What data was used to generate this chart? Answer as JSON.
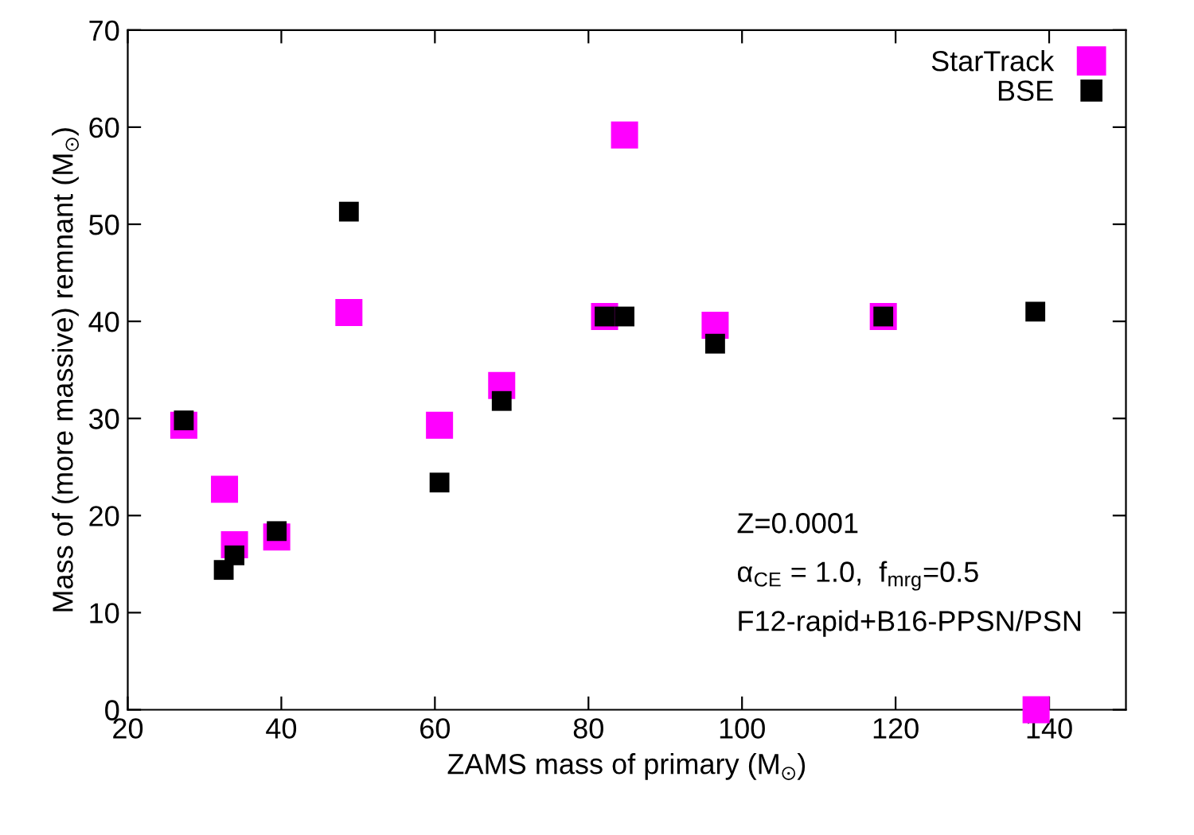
{
  "chart_data": {
    "type": "scatter",
    "xlabel": "ZAMS mass of primary (M$_{⊙}$)",
    "ylabel": "Mass of (more massive) remnant (M$_{⊙}$)",
    "annotations": [
      "Z=0.0001",
      "α$_{CE}$ = 1.0,  f$_{mrg}$=0.5",
      "F12-rapid+B16-PPSN/PSN"
    ],
    "series": [
      {
        "name": "StarTrack",
        "color": "#ff00ff",
        "x": [
          27.3,
          32.6,
          33.9,
          39.4,
          48.8,
          60.6,
          68.7,
          82.1,
          84.7,
          96.5,
          118.4,
          138.3
        ],
        "values": [
          29.3,
          22.7,
          17.0,
          17.8,
          40.9,
          29.3,
          33.4,
          40.5,
          59.2,
          39.6,
          40.5,
          0
        ]
      },
      {
        "name": "BSE",
        "color": "#000000",
        "x": [
          27.3,
          32.5,
          33.9,
          39.4,
          48.8,
          60.6,
          68.7,
          82.1,
          84.7,
          96.5,
          118.4,
          138.2
        ],
        "values": [
          29.8,
          14.4,
          15.9,
          18.4,
          51.3,
          23.4,
          31.8,
          40.5,
          40.5,
          37.7,
          40.5,
          41.0
        ]
      }
    ],
    "xlim": [
      20,
      150
    ],
    "xticks": [
      20,
      40,
      60,
      80,
      100,
      120,
      140
    ],
    "ylim": [
      0,
      70
    ],
    "yticks": [
      0,
      10,
      20,
      30,
      40,
      50,
      60,
      70
    ],
    "marker": "square",
    "legend": "top right",
    "grid": false
  }
}
